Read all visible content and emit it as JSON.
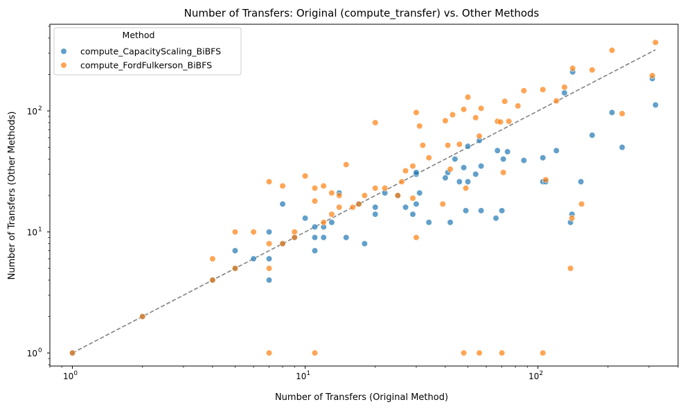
{
  "chart_data": {
    "type": "scatter",
    "title": "Number of Transfers: Original (compute_transfer) vs. Other Methods",
    "xlabel": "Number of Transfers (Original Method)",
    "ylabel": "Number of Transfers (Other Methods)",
    "xscale": "log",
    "yscale": "log",
    "xlim": [
      0.8,
      400
    ],
    "ylim": [
      0.78,
      520
    ],
    "grid": false,
    "legend_placement": "top-left",
    "legend_title": "Method",
    "x_ticks": [
      {
        "value": 1,
        "base": "10",
        "exp": "0"
      },
      {
        "value": 10,
        "base": "10",
        "exp": "1"
      },
      {
        "value": 100,
        "base": "10",
        "exp": "2"
      }
    ],
    "y_ticks": [
      {
        "value": 1,
        "base": "10",
        "exp": "0"
      },
      {
        "value": 10,
        "base": "10",
        "exp": "1"
      },
      {
        "value": 100,
        "base": "10",
        "exp": "2"
      }
    ],
    "reference_line": {
      "x": [
        1,
        320
      ],
      "y": [
        1,
        320
      ],
      "color": "#808080",
      "style": "dashed"
    },
    "series": [
      {
        "name": "compute_CapacityScaling_BiBFS",
        "color": "#1f77b4",
        "points": [
          [
            1,
            1
          ],
          [
            2,
            2
          ],
          [
            4,
            4
          ],
          [
            5,
            5
          ],
          [
            5,
            7
          ],
          [
            6,
            6
          ],
          [
            7,
            6
          ],
          [
            7,
            4
          ],
          [
            7,
            10
          ],
          [
            8,
            17
          ],
          [
            8,
            8
          ],
          [
            9,
            9
          ],
          [
            10,
            13
          ],
          [
            11,
            11
          ],
          [
            11,
            9
          ],
          [
            11,
            7
          ],
          [
            12,
            11
          ],
          [
            12,
            9
          ],
          [
            13,
            12
          ],
          [
            14,
            21
          ],
          [
            15,
            9
          ],
          [
            17,
            17
          ],
          [
            18,
            8
          ],
          [
            20,
            16
          ],
          [
            20,
            14
          ],
          [
            22,
            21
          ],
          [
            25,
            20
          ],
          [
            27,
            16
          ],
          [
            29,
            14
          ],
          [
            30,
            30
          ],
          [
            30,
            31
          ],
          [
            30,
            17
          ],
          [
            31,
            21
          ],
          [
            34,
            12
          ],
          [
            40,
            28
          ],
          [
            41,
            31
          ],
          [
            42,
            12
          ],
          [
            44,
            40
          ],
          [
            46,
            26
          ],
          [
            48,
            34
          ],
          [
            49,
            15
          ],
          [
            50,
            26
          ],
          [
            50,
            51
          ],
          [
            54,
            30
          ],
          [
            56,
            57
          ],
          [
            57,
            35
          ],
          [
            57,
            15
          ],
          [
            66,
            13
          ],
          [
            67,
            47
          ],
          [
            70,
            15
          ],
          [
            71,
            40
          ],
          [
            74,
            46
          ],
          [
            87,
            39
          ],
          [
            105,
            41
          ],
          [
            105,
            26
          ],
          [
            108,
            26
          ],
          [
            120,
            47
          ],
          [
            130,
            141
          ],
          [
            138,
            12
          ],
          [
            140,
            14
          ],
          [
            141,
            210
          ],
          [
            153,
            26
          ],
          [
            171,
            63
          ],
          [
            208,
            97
          ],
          [
            230,
            50
          ],
          [
            310,
            185
          ],
          [
            320,
            112
          ]
        ]
      },
      {
        "name": "compute_FordFulkerson_BiBFS",
        "color": "#ff7f0e",
        "points": [
          [
            1,
            1
          ],
          [
            2,
            2
          ],
          [
            4,
            4
          ],
          [
            4,
            6
          ],
          [
            5,
            5
          ],
          [
            5,
            10
          ],
          [
            6,
            10
          ],
          [
            7,
            26
          ],
          [
            7,
            8
          ],
          [
            7,
            5
          ],
          [
            7,
            1
          ],
          [
            8,
            24
          ],
          [
            8,
            8
          ],
          [
            9,
            10
          ],
          [
            9,
            9
          ],
          [
            10,
            29
          ],
          [
            11,
            23
          ],
          [
            11,
            18
          ],
          [
            11,
            1
          ],
          [
            12,
            24
          ],
          [
            12,
            12
          ],
          [
            13,
            21
          ],
          [
            13,
            14
          ],
          [
            14,
            20
          ],
          [
            14,
            16
          ],
          [
            15,
            36
          ],
          [
            16,
            16
          ],
          [
            17,
            17
          ],
          [
            18,
            20
          ],
          [
            20,
            80
          ],
          [
            20,
            23
          ],
          [
            22,
            23
          ],
          [
            25,
            20
          ],
          [
            26,
            26
          ],
          [
            27,
            32
          ],
          [
            29,
            35
          ],
          [
            29,
            19
          ],
          [
            30,
            97
          ],
          [
            30,
            9
          ],
          [
            31,
            75
          ],
          [
            32,
            52
          ],
          [
            34,
            41
          ],
          [
            39,
            17
          ],
          [
            40,
            83
          ],
          [
            42,
            33
          ],
          [
            41,
            52
          ],
          [
            43,
            93
          ],
          [
            46,
            53
          ],
          [
            48,
            103
          ],
          [
            49,
            23
          ],
          [
            50,
            130
          ],
          [
            48,
            1
          ],
          [
            54,
            88
          ],
          [
            56,
            62
          ],
          [
            56,
            1
          ],
          [
            57,
            105
          ],
          [
            67,
            82
          ],
          [
            69,
            81
          ],
          [
            70,
            1
          ],
          [
            71,
            31
          ],
          [
            72,
            120
          ],
          [
            75,
            82
          ],
          [
            82,
            110
          ],
          [
            87,
            147
          ],
          [
            105,
            150
          ],
          [
            105,
            1
          ],
          [
            108,
            27
          ],
          [
            120,
            121
          ],
          [
            130,
            157
          ],
          [
            138,
            5
          ],
          [
            140,
            13
          ],
          [
            141,
            225
          ],
          [
            154,
            17
          ],
          [
            171,
            218
          ],
          [
            208,
            317
          ],
          [
            230,
            95
          ],
          [
            310,
            196
          ],
          [
            320,
            368
          ]
        ]
      }
    ]
  }
}
